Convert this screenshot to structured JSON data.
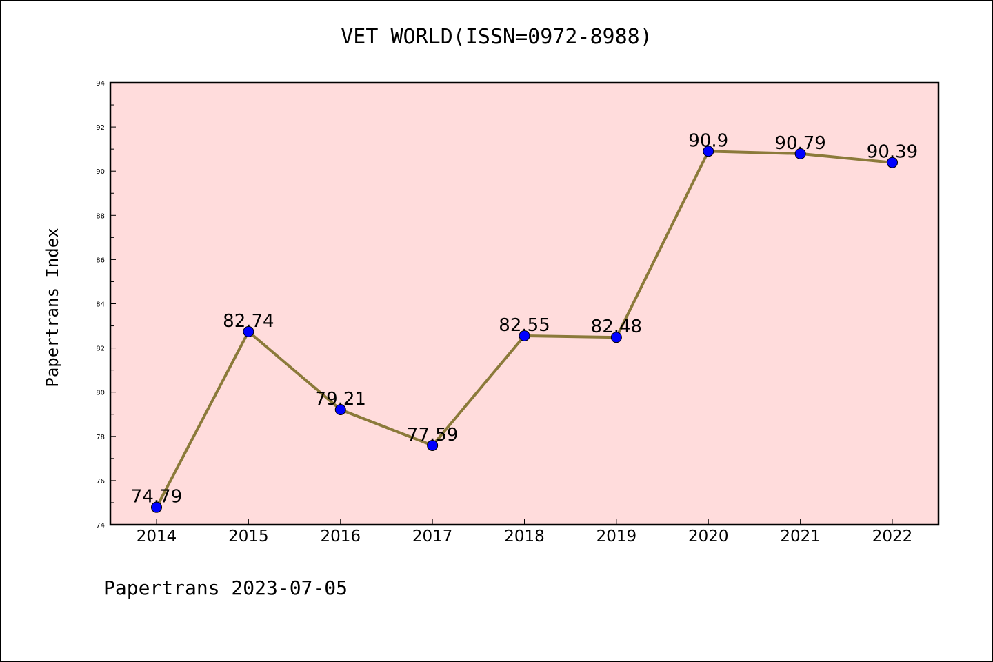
{
  "title": "VET WORLD(ISSN=0972-8988)",
  "footer": "Papertrans 2023-07-05",
  "chart_data": {
    "type": "line",
    "title": "VET WORLD(ISSN=0972-8988)",
    "xlabel": "",
    "ylabel": "Papertrans Index",
    "x": [
      "2014",
      "2015",
      "2016",
      "2017",
      "2018",
      "2019",
      "2020",
      "2021",
      "2022"
    ],
    "series": [
      {
        "values": [
          74.79,
          82.74,
          79.21,
          77.59,
          82.55,
          82.48,
          90.9,
          90.79,
          90.39
        ],
        "labels": [
          "74.79",
          "82.74",
          "79.21",
          "77.59",
          "82.55",
          "82.48",
          "90.9",
          "90.79",
          "90.39"
        ]
      }
    ],
    "ylim": [
      74,
      94
    ],
    "yticks": [
      "74",
      "76",
      "78",
      "80",
      "82",
      "84",
      "86",
      "88",
      "90",
      "92",
      "94"
    ],
    "grid": false,
    "legend": "none",
    "colors": {
      "plot_background": "#ffdcdc",
      "line": "#8b7a3a",
      "marker": "#0000ff"
    }
  }
}
